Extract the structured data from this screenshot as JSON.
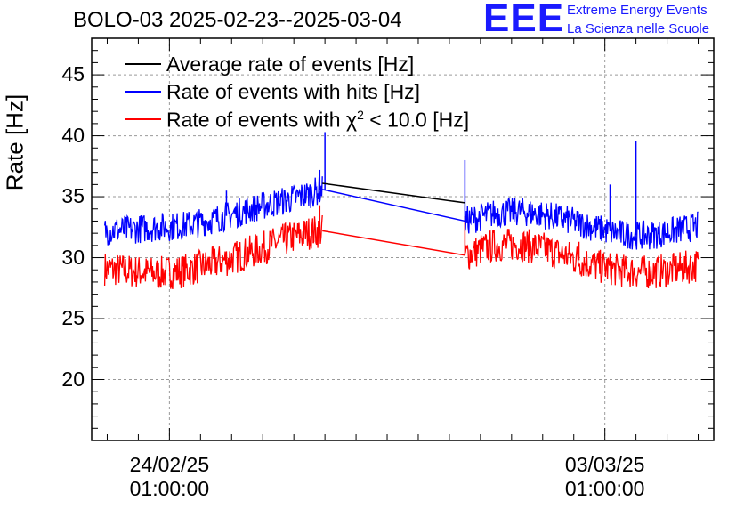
{
  "chart_data": {
    "type": "line",
    "title": "BOLO-03 2025-02-23--2025-03-04",
    "xlabel": "",
    "ylabel": "Rate [Hz]",
    "xlim": [
      0,
      240
    ],
    "ylim": [
      15,
      48
    ],
    "yticks": [
      20,
      25,
      30,
      35,
      40,
      45
    ],
    "xticks": [
      {
        "x": 30,
        "date": "24/02/25",
        "time": "01:00:00"
      },
      {
        "x": 198,
        "date": "03/03/25",
        "time": "01:00:00"
      }
    ],
    "grid": true,
    "legend_position": "top-left",
    "gap": [
      89,
      144
    ],
    "series": [
      {
        "name": "Average rate of events [Hz]",
        "color": "#000000",
        "x": [
          89,
          144
        ],
        "values": [
          36.1,
          34.5
        ]
      },
      {
        "name": "Rate of events with hits [Hz]",
        "color": "#0000ff",
        "noise": 1.2,
        "spikes": [
          [
            90,
            40.3
          ],
          [
            88,
            37.2
          ],
          [
            144,
            38.0
          ],
          [
            210,
            39.6
          ],
          [
            52,
            35.5
          ],
          [
            200,
            36.0
          ]
        ],
        "x": [
          5,
          15,
          25,
          35,
          45,
          55,
          65,
          75,
          85,
          89,
          144,
          155,
          165,
          175,
          185,
          195,
          205,
          215,
          225,
          234
        ],
        "values": [
          32.2,
          32.3,
          32.5,
          32.6,
          33.0,
          33.6,
          34.2,
          34.7,
          35.3,
          35.6,
          33.0,
          33.6,
          33.8,
          33.5,
          33.0,
          32.4,
          31.9,
          31.8,
          32.2,
          32.6
        ]
      },
      {
        "name": "Rate of events with χ² < 10.0 [Hz]",
        "label_main": "Rate of events with χ",
        "label_sup": "2",
        "label_tail": " < 10.0 [Hz]",
        "color": "#ff0000",
        "noise": 1.4,
        "spikes": [
          [
            88,
            34.3
          ],
          [
            144,
            33.4
          ],
          [
            188,
            31.3
          ]
        ],
        "x": [
          5,
          15,
          25,
          35,
          45,
          55,
          65,
          75,
          85,
          89,
          144,
          155,
          165,
          175,
          185,
          195,
          205,
          215,
          225,
          234
        ],
        "values": [
          29.1,
          28.9,
          28.7,
          28.9,
          29.4,
          30.0,
          30.7,
          31.5,
          32.1,
          32.2,
          30.2,
          31.0,
          31.1,
          30.7,
          30.0,
          29.3,
          28.9,
          28.8,
          29.0,
          29.4
        ]
      }
    ]
  },
  "logo": {
    "mark": "EEE",
    "line1": "Extreme Energy Events",
    "line2": "La Scienza nelle Scuole",
    "color": "#1a1aff"
  }
}
